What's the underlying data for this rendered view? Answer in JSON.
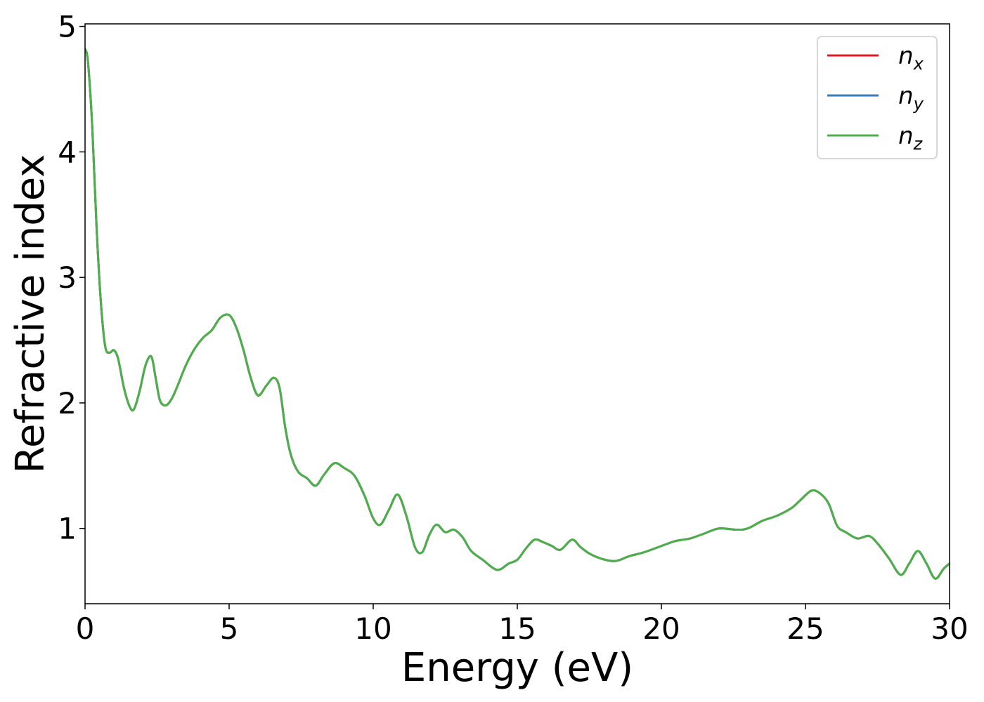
{
  "chart_data": {
    "type": "line",
    "xlabel": "Energy (eV)",
    "ylabel": "Refractive index",
    "xlim": [
      0,
      30
    ],
    "ylim": [
      0.4,
      5.02
    ],
    "xticks": [
      0,
      5,
      10,
      15,
      20,
      25,
      30
    ],
    "xtick_labels": [
      "0",
      "5",
      "10",
      "15",
      "20",
      "25",
      "30"
    ],
    "yticks": [
      1,
      2,
      3,
      4,
      5
    ],
    "ytick_labels": [
      "1",
      "2",
      "3",
      "4",
      "5"
    ],
    "grid": false,
    "legend_position": "top-right",
    "series": [
      {
        "name": "n_x",
        "label_base": "n",
        "label_sub": "x",
        "color": "#e41a1c"
      },
      {
        "name": "n_y",
        "label_base": "n",
        "label_sub": "y",
        "color": "#377eb8"
      },
      {
        "name": "n_z",
        "label_base": "n",
        "label_sub": "z",
        "color": "#4daf4a"
      }
    ],
    "x": [
      0,
      0.1,
      0.25,
      0.4,
      0.55,
      0.7,
      0.85,
      1.0,
      1.15,
      1.35,
      1.55,
      1.7,
      1.9,
      2.1,
      2.3,
      2.45,
      2.6,
      2.8,
      3.0,
      3.2,
      3.5,
      3.8,
      4.1,
      4.4,
      4.7,
      5.0,
      5.25,
      5.5,
      5.75,
      6.0,
      6.3,
      6.55,
      6.75,
      6.95,
      7.15,
      7.4,
      7.7,
      8.0,
      8.3,
      8.65,
      9.0,
      9.35,
      9.7,
      10.0,
      10.25,
      10.55,
      10.85,
      11.15,
      11.45,
      11.7,
      11.95,
      12.2,
      12.5,
      12.8,
      13.1,
      13.4,
      13.8,
      14.3,
      14.7,
      15.0,
      15.3,
      15.6,
      15.9,
      16.2,
      16.5,
      16.9,
      17.2,
      17.5,
      17.9,
      18.4,
      18.9,
      19.4,
      20.0,
      20.5,
      21.0,
      21.5,
      22.0,
      22.6,
      23.0,
      23.5,
      24.0,
      24.5,
      24.8,
      25.2,
      25.5,
      25.8,
      26.1,
      26.4,
      26.8,
      27.2,
      27.5,
      27.9,
      28.3,
      28.6,
      28.9,
      29.2,
      29.5,
      29.8,
      30.0
    ],
    "y": [
      4.82,
      4.72,
      4.2,
      3.4,
      2.8,
      2.45,
      2.4,
      2.42,
      2.35,
      2.12,
      1.97,
      1.95,
      2.1,
      2.3,
      2.37,
      2.2,
      2.02,
      1.98,
      2.03,
      2.13,
      2.3,
      2.43,
      2.52,
      2.58,
      2.68,
      2.7,
      2.6,
      2.42,
      2.2,
      2.06,
      2.14,
      2.2,
      2.12,
      1.8,
      1.58,
      1.45,
      1.4,
      1.34,
      1.43,
      1.52,
      1.48,
      1.42,
      1.26,
      1.08,
      1.03,
      1.15,
      1.27,
      1.1,
      0.85,
      0.81,
      0.95,
      1.03,
      0.97,
      0.99,
      0.93,
      0.82,
      0.75,
      0.67,
      0.72,
      0.75,
      0.84,
      0.91,
      0.89,
      0.86,
      0.83,
      0.91,
      0.85,
      0.8,
      0.76,
      0.74,
      0.78,
      0.81,
      0.86,
      0.9,
      0.92,
      0.96,
      1.0,
      0.99,
      1.0,
      1.06,
      1.1,
      1.16,
      1.22,
      1.3,
      1.28,
      1.2,
      1.02,
      0.97,
      0.92,
      0.94,
      0.88,
      0.76,
      0.63,
      0.72,
      0.82,
      0.72,
      0.6,
      0.68,
      0.72
    ]
  }
}
